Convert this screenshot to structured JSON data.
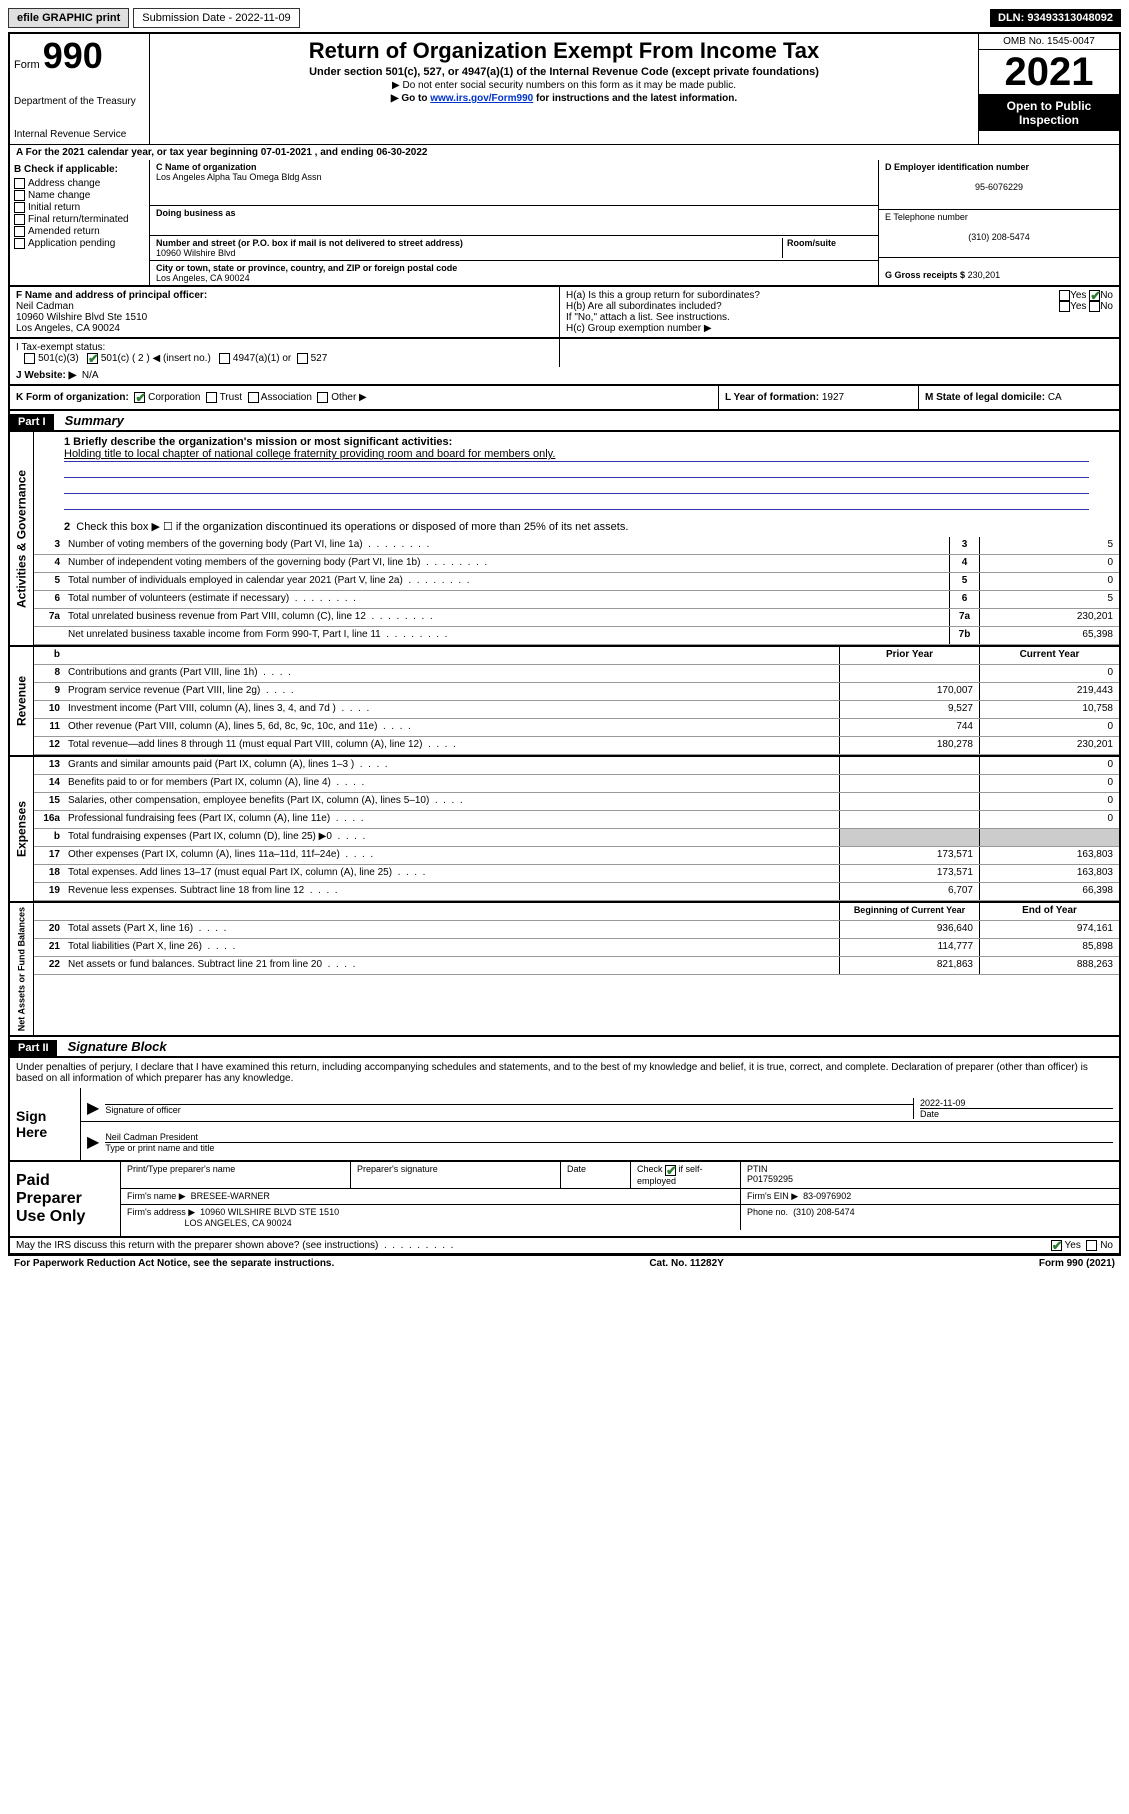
{
  "top_bar": {
    "efile": "efile GRAPHIC print",
    "sub_date_label": "Submission Date - 2022-11-09",
    "dln": "DLN: 93493313048092"
  },
  "header": {
    "form_label": "Form",
    "form_number": "990",
    "dept": "Department of the Treasury",
    "irs": "Internal Revenue Service",
    "title": "Return of Organization Exempt From Income Tax",
    "subtitle": "Under section 501(c), 527, or 4947(a)(1) of the Internal Revenue Code (except private foundations)",
    "note1": "▶ Do not enter social security numbers on this form as it may be made public.",
    "note2_pre": "▶ Go to ",
    "note2_link": "www.irs.gov/Form990",
    "note2_post": " for instructions and the latest information.",
    "omb": "OMB No. 1545-0047",
    "year": "2021",
    "open_public": "Open to Public Inspection"
  },
  "row_a": "A  For the 2021 calendar year, or tax year beginning 07-01-2021    , and ending 06-30-2022",
  "col_b": {
    "label": "B Check if applicable:",
    "opts": [
      "Address change",
      "Name change",
      "Initial return",
      "Final return/terminated",
      "Amended return",
      "Application pending"
    ]
  },
  "col_c": {
    "name_label": "C Name of organization",
    "name": "Los Angeles Alpha Tau Omega Bldg Assn",
    "dba_label": "Doing business as",
    "addr_label": "Number and street (or P.O. box if mail is not delivered to street address)",
    "room_label": "Room/suite",
    "addr": "10960 Wilshire Blvd",
    "city_label": "City or town, state or province, country, and ZIP or foreign postal code",
    "city": "Los Angeles, CA  90024"
  },
  "col_d": {
    "label": "D Employer identification number",
    "value": "95-6076229"
  },
  "col_e": {
    "label": "E Telephone number",
    "value": "(310) 208-5474"
  },
  "col_g": {
    "label": "G Gross receipts $",
    "value": "230,201"
  },
  "box_f": {
    "label": "F Name and address of principal officer:",
    "name": "Neil Cadman",
    "addr1": "10960 Wilshire Blvd Ste 1510",
    "addr2": "Los Angeles, CA  90024"
  },
  "box_h": {
    "a_label": "H(a)  Is this a group return for subordinates?",
    "b_label": "H(b)  Are all subordinates included?",
    "note": "If \"No,\" attach a list. See instructions.",
    "c_label": "H(c)  Group exemption number ▶",
    "yes": "Yes",
    "no": "No"
  },
  "row_i": {
    "label": "I   Tax-exempt status:",
    "opt1": "501(c)(3)",
    "opt2": "501(c) ( 2 ) ◀ (insert no.)",
    "opt3": "4947(a)(1) or",
    "opt4": "527"
  },
  "row_j": {
    "label": "J   Website: ▶",
    "value": "N/A"
  },
  "row_k": {
    "label": "K Form of organization:",
    "opts": [
      "Corporation",
      "Trust",
      "Association",
      "Other ▶"
    ]
  },
  "row_l": {
    "label": "L Year of formation:",
    "value": "1927"
  },
  "row_m": {
    "label": "M State of legal domicile:",
    "value": "CA"
  },
  "part1": {
    "header": "Part I",
    "title": "Summary",
    "q1_label": "1   Briefly describe the organization's mission or most significant activities:",
    "mission": "Holding title to local chapter of national college fraternity providing room and board for members only.",
    "q2": "Check this box ▶ ☐  if the organization discontinued its operations or disposed of more than 25% of its net assets.",
    "rows_gov": [
      {
        "n": "3",
        "d": "Number of voting members of the governing body (Part VI, line 1a)",
        "k": "3",
        "v": "5"
      },
      {
        "n": "4",
        "d": "Number of independent voting members of the governing body (Part VI, line 1b)",
        "k": "4",
        "v": "0"
      },
      {
        "n": "5",
        "d": "Total number of individuals employed in calendar year 2021 (Part V, line 2a)",
        "k": "5",
        "v": "0"
      },
      {
        "n": "6",
        "d": "Total number of volunteers (estimate if necessary)",
        "k": "6",
        "v": "5"
      },
      {
        "n": "7a",
        "d": "Total unrelated business revenue from Part VIII, column (C), line 12",
        "k": "7a",
        "v": "230,201"
      },
      {
        "n": "",
        "d": "Net unrelated business taxable income from Form 990-T, Part I, line 11",
        "k": "7b",
        "v": "65,398"
      }
    ],
    "col_prior": "Prior Year",
    "col_current": "Current Year",
    "rows_rev": [
      {
        "n": "8",
        "d": "Contributions and grants (Part VIII, line 1h)",
        "p": "",
        "c": "0"
      },
      {
        "n": "9",
        "d": "Program service revenue (Part VIII, line 2g)",
        "p": "170,007",
        "c": "219,443"
      },
      {
        "n": "10",
        "d": "Investment income (Part VIII, column (A), lines 3, 4, and 7d )",
        "p": "9,527",
        "c": "10,758"
      },
      {
        "n": "11",
        "d": "Other revenue (Part VIII, column (A), lines 5, 6d, 8c, 9c, 10c, and 11e)",
        "p": "744",
        "c": "0"
      },
      {
        "n": "12",
        "d": "Total revenue—add lines 8 through 11 (must equal Part VIII, column (A), line 12)",
        "p": "180,278",
        "c": "230,201"
      }
    ],
    "rows_exp": [
      {
        "n": "13",
        "d": "Grants and similar amounts paid (Part IX, column (A), lines 1–3 )",
        "p": "",
        "c": "0"
      },
      {
        "n": "14",
        "d": "Benefits paid to or for members (Part IX, column (A), line 4)",
        "p": "",
        "c": "0"
      },
      {
        "n": "15",
        "d": "Salaries, other compensation, employee benefits (Part IX, column (A), lines 5–10)",
        "p": "",
        "c": "0"
      },
      {
        "n": "16a",
        "d": "Professional fundraising fees (Part IX, column (A), line 11e)",
        "p": "",
        "c": "0"
      },
      {
        "n": "b",
        "d": "Total fundraising expenses (Part IX, column (D), line 25) ▶0",
        "p": "grey",
        "c": "grey"
      },
      {
        "n": "17",
        "d": "Other expenses (Part IX, column (A), lines 11a–11d, 11f–24e)",
        "p": "173,571",
        "c": "163,803"
      },
      {
        "n": "18",
        "d": "Total expenses. Add lines 13–17 (must equal Part IX, column (A), line 25)",
        "p": "173,571",
        "c": "163,803"
      },
      {
        "n": "19",
        "d": "Revenue less expenses. Subtract line 18 from line 12",
        "p": "6,707",
        "c": "66,398"
      }
    ],
    "col_begin": "Beginning of Current Year",
    "col_end": "End of Year",
    "rows_net": [
      {
        "n": "20",
        "d": "Total assets (Part X, line 16)",
        "p": "936,640",
        "c": "974,161"
      },
      {
        "n": "21",
        "d": "Total liabilities (Part X, line 26)",
        "p": "114,777",
        "c": "85,898"
      },
      {
        "n": "22",
        "d": "Net assets or fund balances. Subtract line 21 from line 20",
        "p": "821,863",
        "c": "888,263"
      }
    ],
    "vert_gov": "Activities & Governance",
    "vert_rev": "Revenue",
    "vert_exp": "Expenses",
    "vert_net": "Net Assets or Fund Balances"
  },
  "part2": {
    "header": "Part II",
    "title": "Signature Block",
    "intro": "Under penalties of perjury, I declare that I have examined this return, including accompanying schedules and statements, and to the best of my knowledge and belief, it is true, correct, and complete. Declaration of preparer (other than officer) is based on all information of which preparer has any knowledge.",
    "sign_here": "Sign Here",
    "sig_officer": "Signature of officer",
    "sig_date": "2022-11-09",
    "date_label": "Date",
    "officer_name": "Neil Cadman  President",
    "type_label": "Type or print name and title",
    "paid_prep": "Paid Preparer Use Only",
    "prep_name_label": "Print/Type preparer's name",
    "prep_sig_label": "Preparer's signature",
    "check_if": "Check",
    "check_if2": "if self-employed",
    "ptin_label": "PTIN",
    "ptin": "P01759295",
    "firm_name_label": "Firm's name     ▶",
    "firm_name": "BRESEE-WARNER",
    "firm_ein_label": "Firm's EIN ▶",
    "firm_ein": "83-0976902",
    "firm_addr_label": "Firm's address ▶",
    "firm_addr1": "10960 WILSHIRE BLVD STE 1510",
    "firm_addr2": "LOS ANGELES, CA  90024",
    "phone_label": "Phone no.",
    "phone": "(310) 208-5474"
  },
  "footer": {
    "q": "May the IRS discuss this return with the preparer shown above? (see instructions)",
    "yes": "Yes",
    "no": "No",
    "paperwork": "For Paperwork Reduction Act Notice, see the separate instructions.",
    "cat": "Cat. No. 11282Y",
    "form": "Form 990 (2021)"
  }
}
